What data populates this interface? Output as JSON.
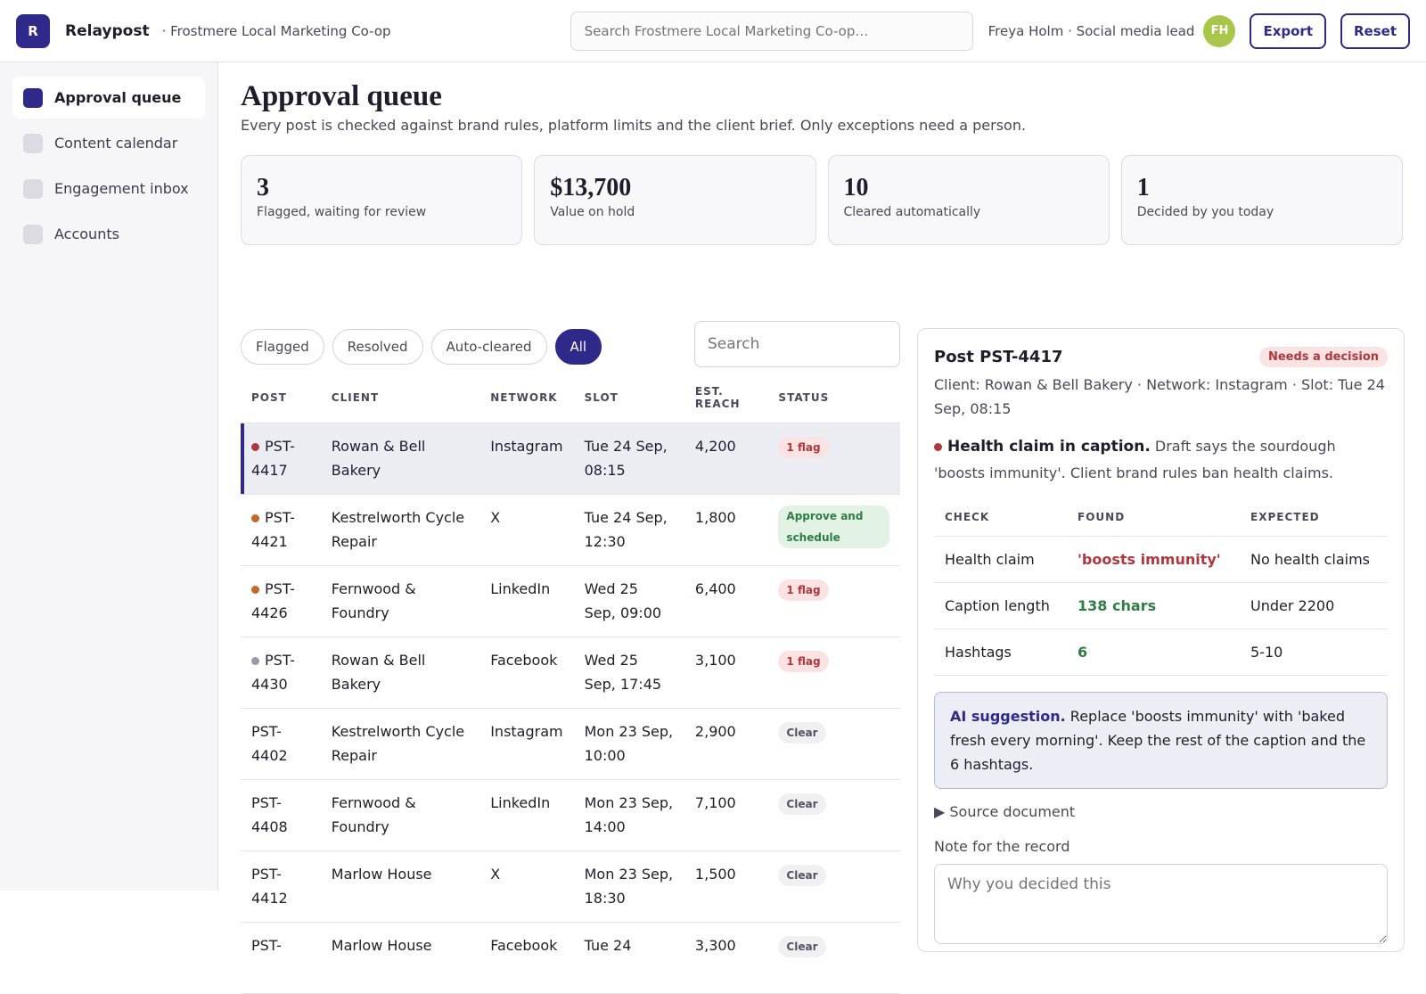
{
  "header": {
    "logo": "R",
    "app": "Relaypost",
    "org": "· Frostmere Local Marketing Co-op",
    "search_placeholder": "Search Frostmere Local Marketing Co-op…",
    "user": "Freya Holm · Social media lead",
    "avatar": "FH",
    "buttons": [
      "Export",
      "Reset"
    ]
  },
  "nav": {
    "items": [
      "Approval queue",
      "Content calendar",
      "Engagement inbox",
      "Accounts"
    ]
  },
  "page": {
    "title": "Approval queue",
    "subtitle": "Every post is checked against brand rules, platform limits and the client brief. Only exceptions need a person."
  },
  "stats": [
    {
      "value": "3",
      "label": "Flagged, waiting for review"
    },
    {
      "value": "$13,700",
      "label": "Value on hold"
    },
    {
      "value": "10",
      "label": "Cleared automatically"
    },
    {
      "value": "1",
      "label": "Decided by you today"
    }
  ],
  "filters": {
    "tabs": [
      "Flagged",
      "Resolved",
      "Auto-cleared",
      "All"
    ],
    "search_placeholder": "Search"
  },
  "table": {
    "columns": [
      "POST",
      "CLIENT",
      "NETWORK",
      "SLOT",
      "EST. REACH",
      "STATUS"
    ],
    "rows": [
      [
        "PST-4417",
        "Rowan & Bell Bakery",
        "Instagram",
        "Tue 24 Sep, 08:15",
        "4,200",
        "1 flag"
      ],
      [
        "PST-4421",
        "Kestrelworth Cycle Repair",
        "X",
        "Tue 24 Sep, 12:30",
        "1,800",
        "Approve and schedule"
      ],
      [
        "PST-4426",
        "Fernwood & Foundry",
        "LinkedIn",
        "Wed 25 Sep, 09:00",
        "6,400",
        "1 flag"
      ],
      [
        "PST-4430",
        "Rowan & Bell Bakery",
        "Facebook",
        "Wed 25 Sep, 17:45",
        "3,100",
        "1 flag"
      ],
      [
        "PST-4402",
        "Kestrelworth Cycle Repair",
        "Instagram",
        "Mon 23 Sep, 10:00",
        "2,900",
        "Clear"
      ],
      [
        "PST-4408",
        "Fernwood & Foundry",
        "LinkedIn",
        "Mon 23 Sep, 14:00",
        "7,100",
        "Clear"
      ],
      [
        "PST-4412",
        "Marlow House",
        "X",
        "Mon 23 Sep, 18:30",
        "1,500",
        "Clear"
      ],
      [
        "PST-",
        "Marlow House",
        "Facebook",
        "Tue 24",
        "3,300",
        "Clear"
      ]
    ]
  },
  "detail": {
    "title": "Post PST-4417",
    "badge": "Needs a decision",
    "meta": "Client: Rowan & Bell Bakery · Network: Instagram · Slot: Tue 24 Sep, 08:15",
    "issue_title": "Health claim in caption.",
    "issue_text": "Draft says the sourdough 'boosts immunity'. Client brand rules ban health claims.",
    "checks": {
      "columns": [
        "CHECK",
        "FOUND",
        "EXPECTED"
      ],
      "rows": [
        [
          "Health claim",
          "'boosts immunity'",
          "No health claims"
        ],
        [
          "Caption length",
          "138 chars",
          "Under 2200"
        ],
        [
          "Hashtags",
          "6",
          "5-10"
        ]
      ]
    },
    "suggestion_label": "AI suggestion.",
    "suggestion_text": "Replace 'boosts immunity' with 'baked fresh every morning'. Keep the rest of the caption and the 6 hashtags.",
    "source": "Source document",
    "note_label": "Note for the record",
    "note_placeholder": "Why you decided this"
  }
}
